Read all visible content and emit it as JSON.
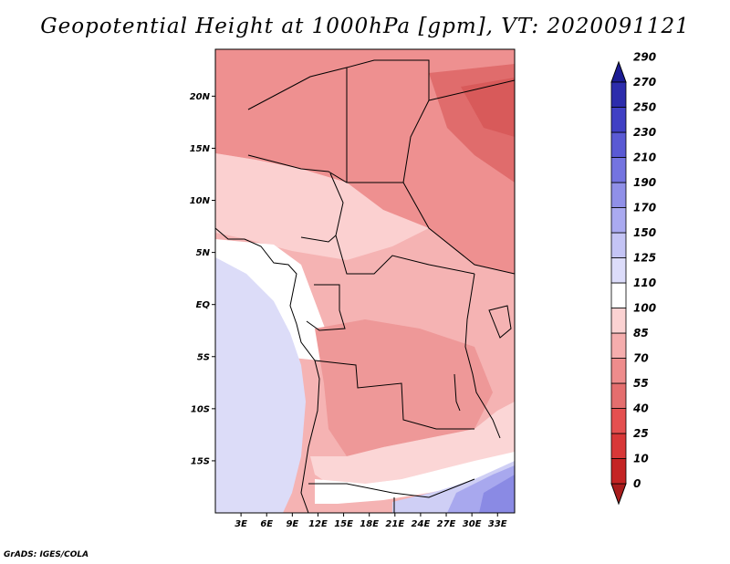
{
  "title": "Geopotential Height at 1000hPa [gpm], VT: 2020091121",
  "credit": "GrADS: IGES/COLA",
  "map": {
    "lon_range": [
      0,
      35
    ],
    "lat_range": [
      -20,
      24.5
    ],
    "lat_ticks": [
      {
        "value": 20,
        "label": "20N"
      },
      {
        "value": 15,
        "label": "15N"
      },
      {
        "value": 10,
        "label": "10N"
      },
      {
        "value": 5,
        "label": "5N"
      },
      {
        "value": 0,
        "label": "EQ"
      },
      {
        "value": -5,
        "label": "5S"
      },
      {
        "value": -10,
        "label": "10S"
      },
      {
        "value": -15,
        "label": "15S"
      }
    ],
    "lon_ticks": [
      {
        "value": 3,
        "label": "3E"
      },
      {
        "value": 6,
        "label": "6E"
      },
      {
        "value": 9,
        "label": "9E"
      },
      {
        "value": 12,
        "label": "12E"
      },
      {
        "value": 15,
        "label": "15E"
      },
      {
        "value": 18,
        "label": "18E"
      },
      {
        "value": 21,
        "label": "21E"
      },
      {
        "value": 24,
        "label": "24E"
      },
      {
        "value": 27,
        "label": "27E"
      },
      {
        "value": 30,
        "label": "30E"
      },
      {
        "value": 33,
        "label": "33E"
      }
    ]
  },
  "colorbar": {
    "labels": [
      "0",
      "10",
      "25",
      "40",
      "55",
      "70",
      "85",
      "100",
      "110",
      "125",
      "150",
      "170",
      "190",
      "210",
      "230",
      "250",
      "270",
      "290"
    ],
    "colors": [
      "#a81c1c",
      "#c42424",
      "#d83838",
      "#e45050",
      "#e46e6e",
      "#ee8c8c",
      "#f5adad",
      "#fbd2d2",
      "#ffffff",
      "#dcdcfa",
      "#c4c4f5",
      "#aaaaf0",
      "#9090e8",
      "#7474e0",
      "#5a5ad4",
      "#4040c4",
      "#2c2cac",
      "#1c1c94"
    ]
  }
}
